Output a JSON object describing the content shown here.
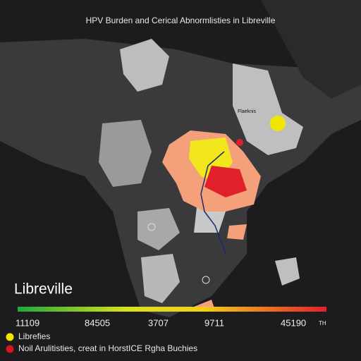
{
  "title": "HPV Burden and Cerical Abnormlisties in Libreville",
  "map_labels": [
    "Flaeknis"
  ],
  "focus_label": "Libreville",
  "colorbar": {
    "labels": [
      "11109",
      "84505",
      "3707",
      "9711",
      "45190",
      "TH"
    ]
  },
  "legend": [
    {
      "label": "Librefies",
      "color": "#f2e600"
    },
    {
      "label": "Noil Arulitisties, creat in HorstICE Rgha Buchies",
      "color": "#d8141c"
    }
  ]
}
